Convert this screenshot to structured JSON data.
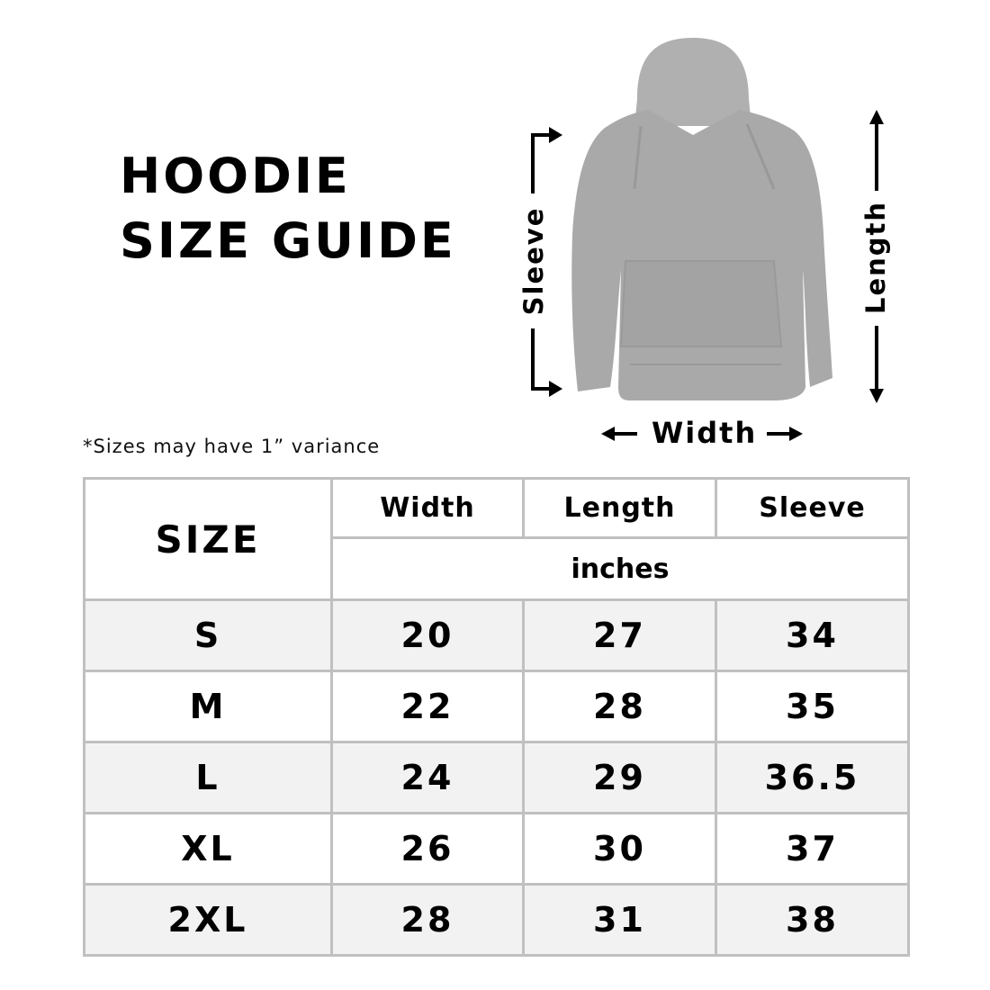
{
  "title": {
    "line1": "HOODIE",
    "line2": "SIZE GUIDE"
  },
  "note": "*Sizes may have 1” variance",
  "diagram": {
    "sleeve_label": "Sleeve",
    "length_label": "Length",
    "width_label": "Width",
    "hoodie_color": "#a9a9a9"
  },
  "table": {
    "size_header": "SIZE",
    "columns": [
      "Width",
      "Length",
      "Sleeve"
    ],
    "unit": "inches",
    "rows": [
      {
        "size": "S",
        "width": "20",
        "length": "27",
        "sleeve": "34"
      },
      {
        "size": "M",
        "width": "22",
        "length": "28",
        "sleeve": "35"
      },
      {
        "size": "L",
        "width": "24",
        "length": "29",
        "sleeve": "36.5"
      },
      {
        "size": "XL",
        "width": "26",
        "length": "30",
        "sleeve": "37"
      },
      {
        "size": "2XL",
        "width": "28",
        "length": "31",
        "sleeve": "38"
      }
    ],
    "border_color": "#c0c0c0",
    "alt_row_color": "#f2f2f2"
  }
}
